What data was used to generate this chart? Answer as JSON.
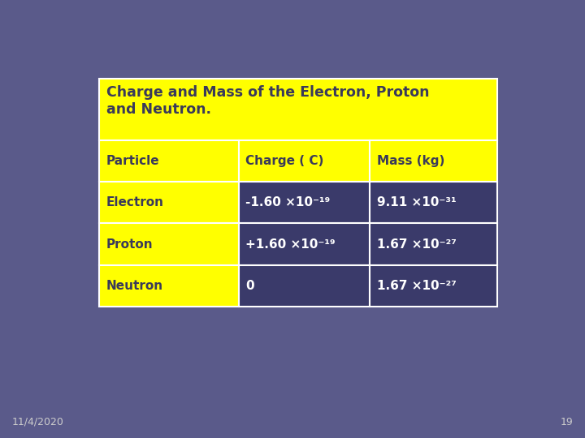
{
  "title": "Charge and Mass of the Electron, Proton\nand Neutron.",
  "headers": [
    "Particle",
    "Charge ( C)",
    "Mass (kg)"
  ],
  "rows": [
    [
      "Electron",
      "-1.60 ×10⁻¹⁹",
      "9.11 ×10⁻³¹"
    ],
    [
      "Proton",
      "+1.60 ×10⁻¹⁹",
      "1.67 ×10⁻²⁷"
    ],
    [
      "Neutron",
      "0",
      "1.67 ×10⁻²⁷"
    ]
  ],
  "bg_color": "#5a5a8a",
  "table_bg_yellow": "#ffff00",
  "table_bg_dark": "#3a3a6a",
  "border_color": "#ffffff",
  "title_color": "#3a3a5a",
  "header_color": "#3a3a5a",
  "data_color_yellow": "#3a3a5a",
  "data_color_dark": "#ffffff",
  "footer_date": "11/4/2020",
  "footer_page": "19",
  "footer_color": "#cccccc"
}
